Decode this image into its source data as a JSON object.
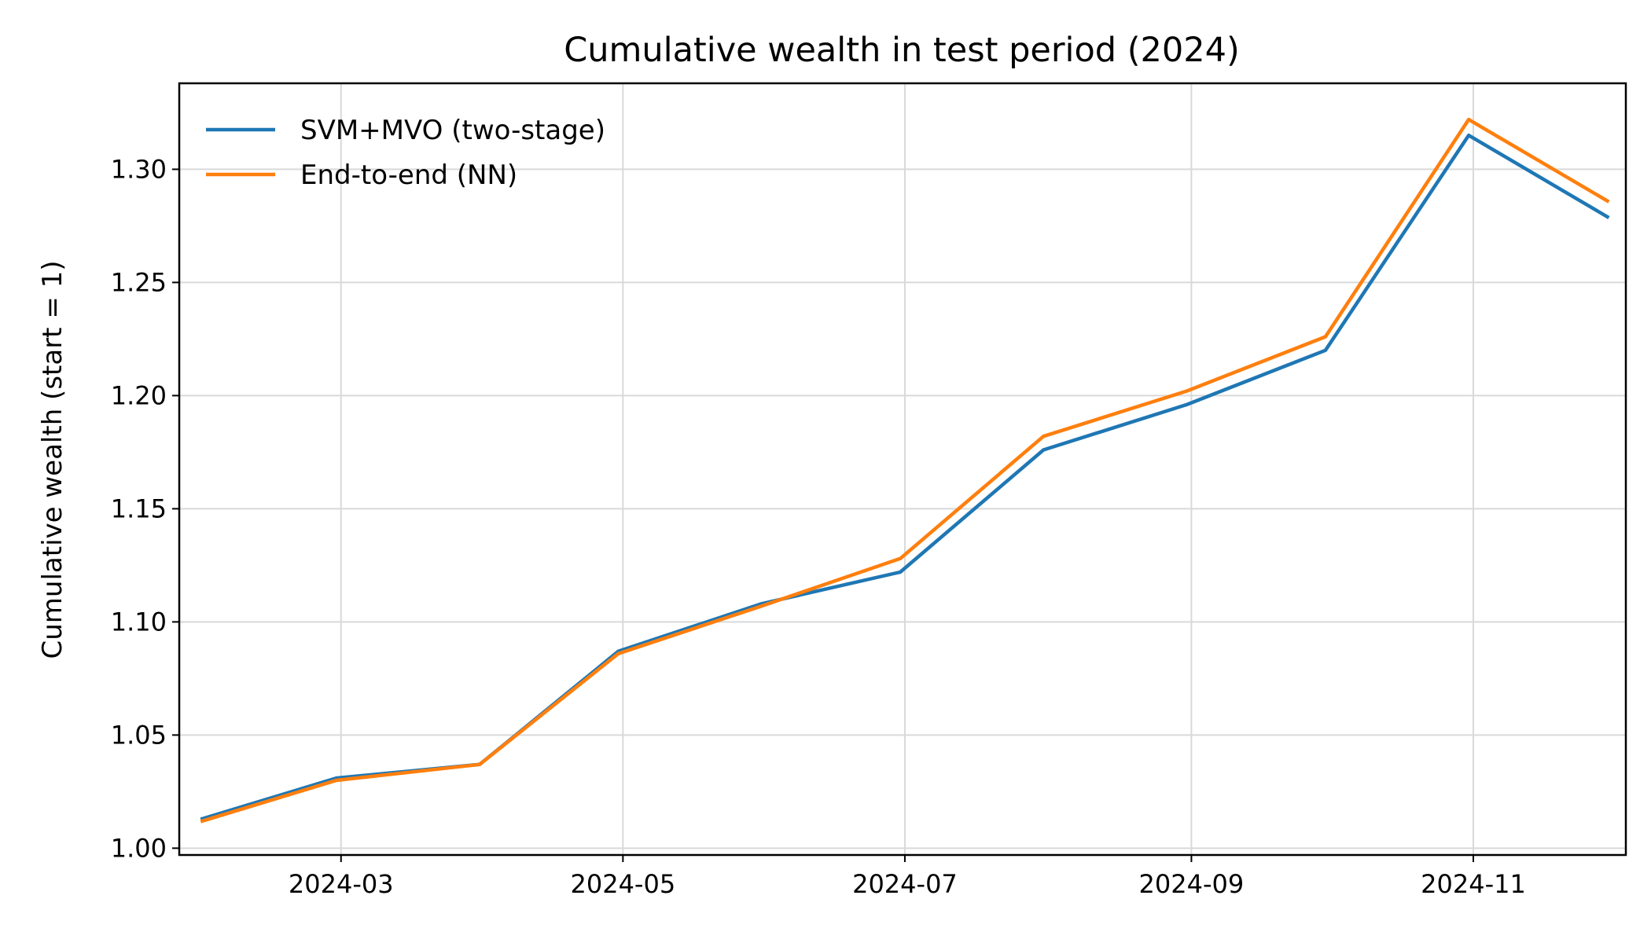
{
  "chart_data": {
    "type": "line",
    "title": "Cumulative wealth in test period (2024)",
    "xlabel": "",
    "ylabel": "Cumulative wealth (start = 1)",
    "x": [
      "2024-01-31",
      "2024-02-29",
      "2024-03-31",
      "2024-04-30",
      "2024-05-31",
      "2024-06-30",
      "2024-07-31",
      "2024-08-31",
      "2024-09-30",
      "2024-10-31",
      "2024-11-30"
    ],
    "x_ticks": [
      "2024-03",
      "2024-05",
      "2024-07",
      "2024-09",
      "2024-11"
    ],
    "xlim": [
      "2024-01-26",
      "2024-12-04"
    ],
    "y_ticks": [
      "1.00",
      "1.05",
      "1.10",
      "1.15",
      "1.20",
      "1.25",
      "1.30"
    ],
    "ylim": [
      0.997,
      1.338
    ],
    "grid": true,
    "legend_position": "upper-left",
    "series": [
      {
        "name": "SVM+MVO (two-stage)",
        "color": "#1f77b4",
        "values": [
          1.013,
          1.031,
          1.037,
          1.087,
          1.108,
          1.122,
          1.176,
          1.196,
          1.22,
          1.315,
          1.279
        ]
      },
      {
        "name": "End-to-end (NN)",
        "color": "#ff7f0e",
        "values": [
          1.012,
          1.03,
          1.037,
          1.086,
          1.107,
          1.128,
          1.182,
          1.202,
          1.226,
          1.322,
          1.286
        ]
      }
    ]
  }
}
